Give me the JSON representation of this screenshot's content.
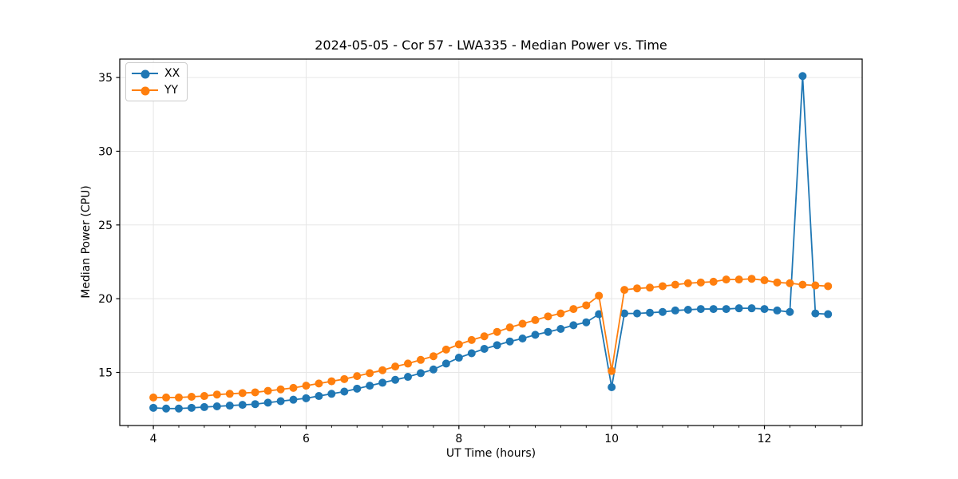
{
  "chart_data": {
    "type": "line",
    "title": "2024-05-05 - Cor 57 - LWA335 - Median Power vs. Time",
    "xlabel": "UT Time (hours)",
    "ylabel": "Median Power (CPU)",
    "grid": true,
    "legend_position": "upper left",
    "xlim": [
      3.56,
      13.28
    ],
    "ylim": [
      11.4,
      36.25
    ],
    "x_major_ticks": [
      4,
      6,
      8,
      10,
      12
    ],
    "x_minor_tick_step": 0.3333,
    "y_major_ticks": [
      15,
      20,
      25,
      30,
      35
    ],
    "x": [
      4.0,
      4.167,
      4.333,
      4.5,
      4.667,
      4.833,
      5.0,
      5.167,
      5.333,
      5.5,
      5.667,
      5.833,
      6.0,
      6.167,
      6.333,
      6.5,
      6.667,
      6.833,
      7.0,
      7.167,
      7.333,
      7.5,
      7.667,
      7.833,
      8.0,
      8.167,
      8.333,
      8.5,
      8.667,
      8.833,
      9.0,
      9.167,
      9.333,
      9.5,
      9.667,
      9.833,
      10.0,
      10.167,
      10.333,
      10.5,
      10.667,
      10.833,
      11.0,
      11.167,
      11.333,
      11.5,
      11.667,
      11.833,
      12.0,
      12.167,
      12.333,
      12.5,
      12.667,
      12.833
    ],
    "series": [
      {
        "name": "XX",
        "color": "#1f77b4",
        "marker": "circle",
        "values": [
          12.6,
          12.55,
          12.55,
          12.6,
          12.65,
          12.7,
          12.75,
          12.8,
          12.85,
          12.95,
          13.05,
          13.15,
          13.25,
          13.4,
          13.55,
          13.7,
          13.9,
          14.1,
          14.3,
          14.5,
          14.7,
          14.95,
          15.2,
          15.6,
          16.0,
          16.3,
          16.6,
          16.85,
          17.1,
          17.3,
          17.55,
          17.75,
          17.95,
          18.2,
          18.4,
          18.95,
          14.0,
          19.0,
          19.0,
          19.05,
          19.1,
          19.2,
          19.25,
          19.3,
          19.3,
          19.3,
          19.35,
          19.35,
          19.3,
          19.2,
          19.1,
          35.1,
          19.0,
          18.95
        ]
      },
      {
        "name": "YY",
        "color": "#ff7f0e",
        "marker": "circle",
        "values": [
          13.3,
          13.3,
          13.3,
          13.35,
          13.4,
          13.5,
          13.55,
          13.6,
          13.65,
          13.75,
          13.85,
          13.95,
          14.1,
          14.25,
          14.4,
          14.55,
          14.75,
          14.95,
          15.15,
          15.4,
          15.6,
          15.85,
          16.1,
          16.55,
          16.9,
          17.2,
          17.45,
          17.75,
          18.05,
          18.3,
          18.55,
          18.8,
          19.0,
          19.3,
          19.55,
          20.2,
          15.1,
          20.6,
          20.7,
          20.75,
          20.85,
          20.95,
          21.05,
          21.1,
          21.15,
          21.3,
          21.3,
          21.35,
          21.25,
          21.1,
          21.05,
          20.95,
          20.9,
          20.85
        ]
      }
    ],
    "colors": {
      "grid": "#e6e6e6",
      "spine": "#000000",
      "tick": "#000000"
    }
  }
}
